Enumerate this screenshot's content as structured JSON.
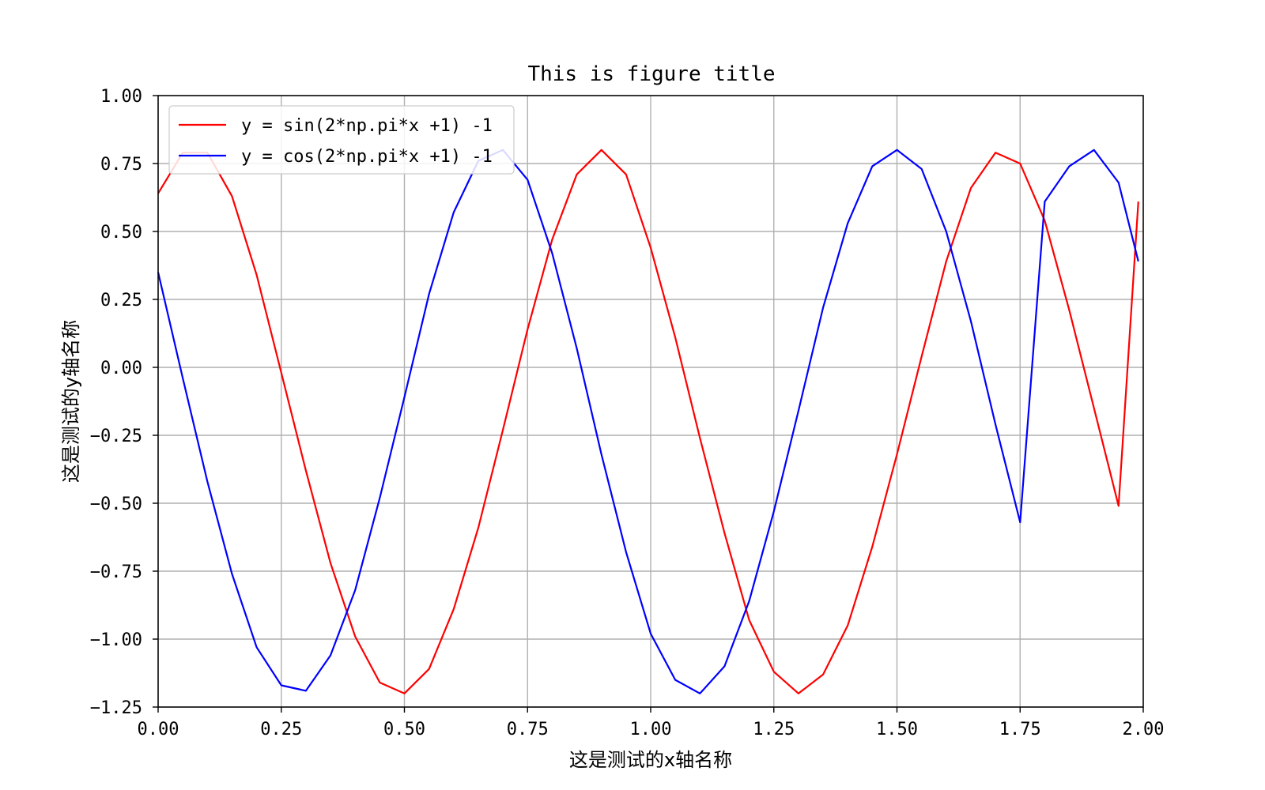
{
  "chart_data": {
    "type": "line",
    "title": "This is figure title",
    "xlabel": "这是测试的x轴名称",
    "ylabel": "这是测试的y轴名称",
    "xlim": [
      0,
      2
    ],
    "ylim": [
      -1.25,
      1
    ],
    "grid": true,
    "legend_position": "top-left",
    "x_ticks": [
      "0.00",
      "0.25",
      "0.50",
      "0.75",
      "1.00",
      "1.25",
      "1.50",
      "1.75",
      "2.00"
    ],
    "y_ticks": [
      "1.00",
      "0.75",
      "0.50",
      "0.25",
      "0.00",
      "−0.25",
      "−0.50",
      "−0.75",
      "−1.00",
      "−1.25"
    ],
    "x_tick_values": [
      0,
      0.25,
      0.5,
      0.75,
      1.0,
      1.25,
      1.5,
      1.75,
      2.0
    ],
    "y_tick_values": [
      1.0,
      0.75,
      0.5,
      0.25,
      0.0,
      -0.25,
      -0.5,
      -0.75,
      -1.0,
      -1.25
    ],
    "x": [
      0.0,
      0.05,
      0.1,
      0.15,
      0.2,
      0.25,
      0.3,
      0.35,
      0.4,
      0.45,
      0.5,
      0.55,
      0.6,
      0.65,
      0.7,
      0.75,
      0.8,
      0.85,
      0.9,
      0.95,
      1.0,
      1.05,
      1.1,
      1.15,
      1.2,
      1.25,
      1.3,
      1.35,
      1.4,
      1.45,
      1.5,
      1.55,
      1.6,
      1.65,
      1.7,
      1.75,
      1.8,
      1.85,
      1.9,
      1.95,
      1.99
    ],
    "series": [
      {
        "name": "y = sin(2*np.pi*x +1) -1",
        "color": "#ff0000",
        "values": [
          0.64,
          0.79,
          0.79,
          0.63,
          0.34,
          -0.02,
          -0.38,
          -0.72,
          -0.99,
          -1.16,
          -1.2,
          -1.11,
          -0.89,
          -0.59,
          -0.23,
          0.14,
          0.47,
          0.71,
          0.8,
          0.71,
          0.44,
          0.11,
          -0.26,
          -0.61,
          -0.93,
          -1.12,
          -1.2,
          -1.13,
          -0.95,
          -0.66,
          -0.32,
          0.04,
          0.39,
          0.66,
          0.79,
          0.75,
          0.54,
          0.21,
          -0.15,
          -0.51,
          0.61
        ]
      },
      {
        "name": "y = cos(2*np.pi*x +1) -1",
        "color": "#0000ff",
        "values": [
          0.35,
          -0.04,
          -0.42,
          -0.76,
          -1.03,
          -1.17,
          -1.19,
          -1.06,
          -0.82,
          -0.48,
          -0.11,
          0.27,
          0.57,
          0.76,
          0.8,
          0.69,
          0.42,
          0.07,
          -0.32,
          -0.68,
          -0.98,
          -1.15,
          -1.2,
          -1.1,
          -0.86,
          -0.53,
          -0.16,
          0.22,
          0.53,
          0.74,
          0.8,
          0.73,
          0.5,
          0.17,
          -0.21,
          -0.57,
          0.61,
          0.74,
          0.8,
          0.68,
          0.39
        ]
      }
    ]
  }
}
